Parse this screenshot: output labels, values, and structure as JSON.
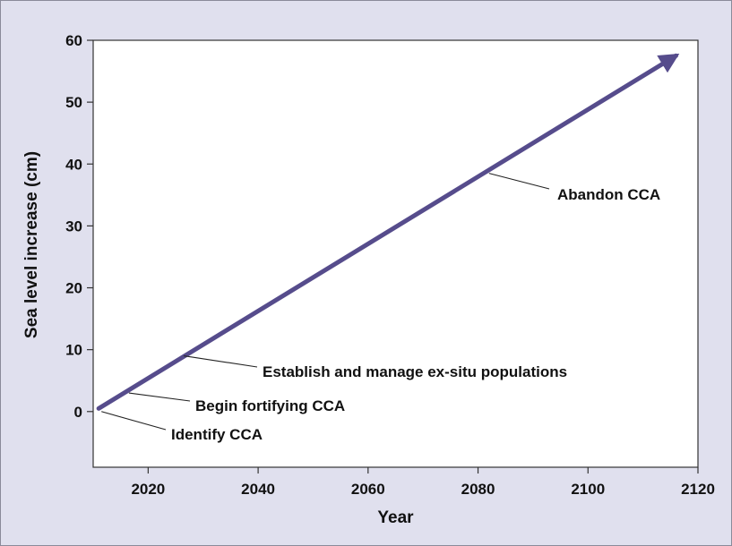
{
  "chart_data": {
    "type": "line",
    "title": "",
    "xlabel": "Year",
    "ylabel": "Sea level increase (cm)",
    "xlim": [
      2010,
      2120
    ],
    "ylim": [
      -9,
      60
    ],
    "xticks": [
      2020,
      2040,
      2060,
      2080,
      2100,
      2120
    ],
    "yticks": [
      0,
      10,
      20,
      30,
      40,
      50,
      60
    ],
    "grid": false,
    "series": [
      {
        "x": [
          2011,
          2116
        ],
        "y": [
          0.5,
          57.5
        ]
      }
    ],
    "annotations": [
      {
        "text": "Identify CCA",
        "x": 2011.5,
        "y": 0
      },
      {
        "text": "Begin fortifying CCA",
        "x": 2016.5,
        "y": 3
      },
      {
        "text": "Establish and manage ex-situ populations",
        "x": 2026.5,
        "y": 9
      },
      {
        "text": "Abandon CCA",
        "x": 2082,
        "y": 38.5
      }
    ],
    "colors": {
      "line": "#564c8c",
      "background": "#e0e0ee",
      "plot": "#ffffff"
    }
  }
}
